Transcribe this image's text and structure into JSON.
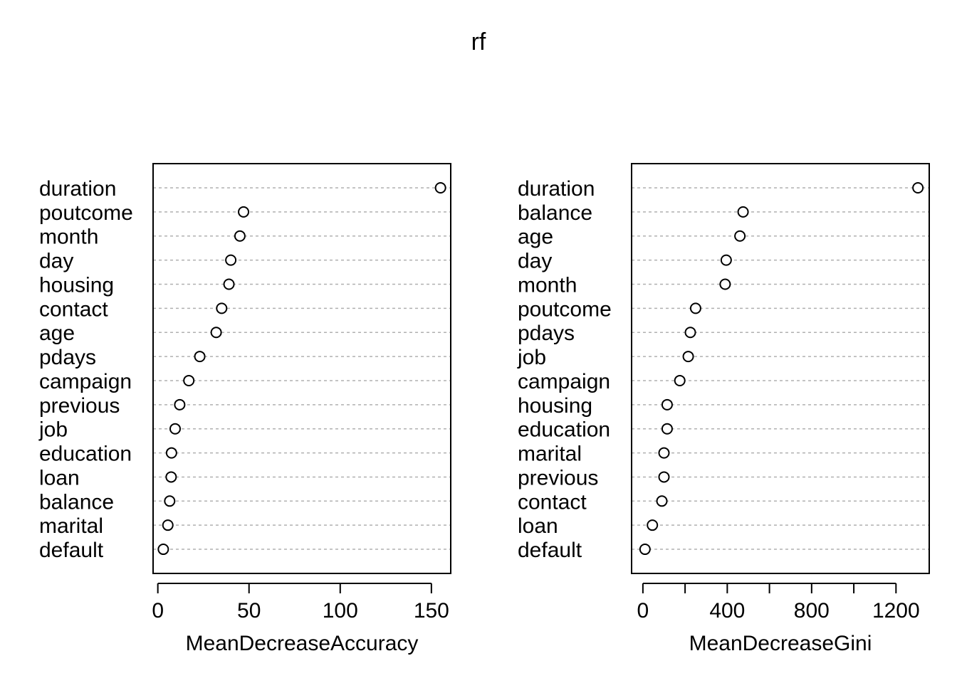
{
  "chart_data": [
    {
      "type": "scatter",
      "title": "rf",
      "xlabel": "MeanDecreaseAccuracy",
      "xlim": [
        -2.6,
        160.6
      ],
      "xticks": [
        0,
        50,
        100,
        150
      ],
      "tick_labels": [
        "0",
        "50",
        "100",
        "150"
      ],
      "grid": "horizontal dotted",
      "categories": [
        "duration",
        "poutcome",
        "month",
        "day",
        "housing",
        "contact",
        "age",
        "pdays",
        "campaign",
        "previous",
        "job",
        "education",
        "loan",
        "balance",
        "marital",
        "default"
      ],
      "values": [
        155,
        47,
        45,
        40,
        39,
        35,
        32,
        23,
        17,
        12,
        9.5,
        7.5,
        7.3,
        6.5,
        5.5,
        3
      ]
    },
    {
      "type": "scatter",
      "xlabel": "MeanDecreaseGini",
      "xlim": [
        -53.6,
        1357.6
      ],
      "xticks": [
        0,
        200,
        400,
        600,
        800,
        1000,
        1200
      ],
      "tick_labels": [
        "0",
        "",
        "400",
        "",
        "800",
        "",
        "1200"
      ],
      "grid": "horizontal dotted",
      "categories": [
        "duration",
        "balance",
        "age",
        "day",
        "month",
        "poutcome",
        "pdays",
        "job",
        "campaign",
        "housing",
        "education",
        "marital",
        "previous",
        "contact",
        "loan",
        "default"
      ],
      "values": [
        1304,
        475,
        460,
        395,
        390,
        250,
        225,
        215,
        175,
        115,
        115,
        100,
        100,
        90,
        45,
        10
      ]
    }
  ]
}
